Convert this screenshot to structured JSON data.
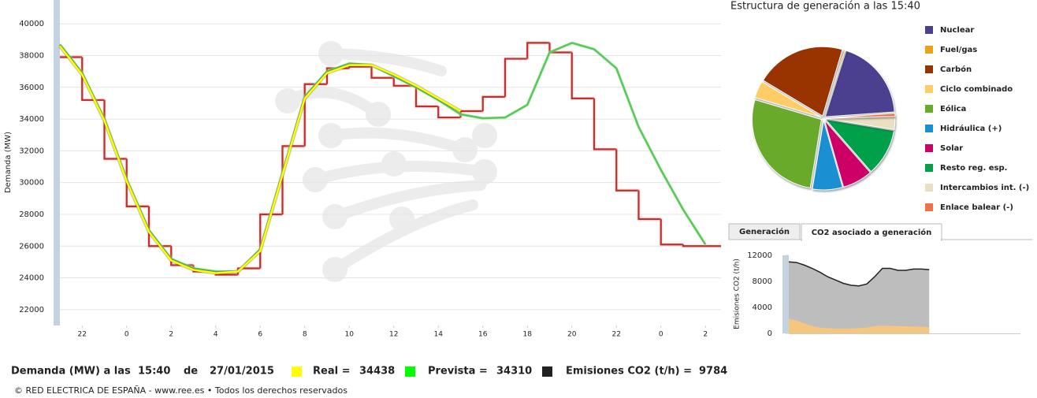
{
  "chart_data": [
    {
      "type": "line",
      "y_label": "Demanda (MW)",
      "xlim": [
        -1,
        28.7
      ],
      "xticks": [
        {
          "value": 0,
          "label": "22"
        },
        {
          "value": 2,
          "label": "0"
        },
        {
          "value": 4,
          "label": "2"
        },
        {
          "value": 6,
          "label": "4"
        },
        {
          "value": 8,
          "label": "6"
        },
        {
          "value": 10,
          "label": "8"
        },
        {
          "value": 12,
          "label": "10"
        },
        {
          "value": 14,
          "label": "12"
        },
        {
          "value": 16,
          "label": "14"
        },
        {
          "value": 18,
          "label": "16"
        },
        {
          "value": 20,
          "label": "18"
        },
        {
          "value": 22,
          "label": "20"
        },
        {
          "value": 24,
          "label": "22"
        },
        {
          "value": 26,
          "label": "0"
        },
        {
          "value": 28,
          "label": "2"
        }
      ],
      "ylim": [
        21000,
        41500
      ],
      "yticks": [
        22000,
        24000,
        26000,
        28000,
        30000,
        32000,
        34000,
        36000,
        38000,
        40000
      ],
      "grid": true,
      "series": [
        {
          "color": "#c0302c",
          "step": true,
          "x": [
            -1,
            0,
            1,
            2,
            3,
            4,
            5,
            6,
            7,
            8,
            9,
            10,
            11,
            12,
            13,
            14,
            15,
            16,
            17,
            18,
            19,
            20,
            21,
            22,
            23,
            24,
            25,
            26,
            27
          ],
          "values": [
            37900,
            35200,
            31500,
            28500,
            26000,
            24800,
            24400,
            24200,
            24600,
            28000,
            32300,
            36200,
            37200,
            37300,
            36600,
            36100,
            34800,
            34100,
            34500,
            35400,
            37800,
            38800,
            38200,
            35300,
            32100,
            29500,
            27700,
            26100,
            26000
          ]
        },
        {
          "color": "#5cc85c",
          "x": [
            -1,
            0,
            1,
            2,
            3,
            4,
            5,
            6,
            7,
            8,
            9,
            10,
            11,
            12,
            13,
            14,
            15,
            16,
            17,
            18,
            19,
            20,
            21,
            22,
            23,
            24,
            25,
            26,
            27,
            28
          ],
          "values": [
            38700,
            36900,
            34000,
            30200,
            27000,
            25200,
            24600,
            24400,
            24400,
            25800,
            30600,
            35400,
            37000,
            37500,
            37400,
            36700,
            36000,
            35200,
            34300,
            34050,
            34100,
            34900,
            38200,
            38800,
            38400,
            37200,
            33500,
            30800,
            28300,
            26100
          ]
        },
        {
          "color": "#ffff00",
          "x": [
            -1,
            0,
            1,
            2,
            3,
            4,
            5,
            6,
            7,
            8,
            9,
            10,
            11,
            12,
            13,
            14,
            15,
            16,
            17
          ],
          "values": [
            38600,
            36800,
            33900,
            30100,
            26900,
            25100,
            24500,
            24300,
            24400,
            25700,
            30500,
            35300,
            36900,
            37400,
            37400,
            36800,
            36100,
            35300,
            34500
          ]
        }
      ]
    },
    {
      "type": "pie",
      "title": "Estructura de generación a las 15:40",
      "categories": [
        "Nuclear",
        "Fuel/gas",
        "Carbón",
        "Ciclo combinado",
        "Eólica",
        "Hidráulica (+)",
        "Solar",
        "Resto reg. esp.",
        "Intercambios int. (-)",
        "Enlace balear (-)"
      ],
      "values": [
        19,
        0.3,
        21,
        4,
        27,
        7,
        7,
        11,
        3,
        0.7
      ],
      "colors": [
        "#4b3f8f",
        "#e8a317",
        "#993300",
        "#ffcc66",
        "#6aaa2a",
        "#1a8fd1",
        "#cc0066",
        "#00a04a",
        "#e8e0c0",
        "#f0704a"
      ]
    },
    {
      "type": "area",
      "y_label": "Emisiones CO2 (t/h)",
      "xlim": [
        -1,
        28.7
      ],
      "ylim": [
        0,
        12000
      ],
      "yticks": [
        0,
        4000,
        8000,
        12000
      ],
      "series": [
        {
          "color": "#bdbdbd",
          "line_color": "#222222",
          "x": [
            -1,
            0,
            1,
            2,
            3,
            4,
            5,
            6,
            7,
            8,
            9,
            10,
            11,
            12,
            13,
            14,
            15,
            16,
            17
          ],
          "values": [
            11000,
            10900,
            10500,
            10000,
            9400,
            8700,
            8200,
            7700,
            7400,
            7300,
            7600,
            8700,
            10000,
            10000,
            9700,
            9700,
            9900,
            9900,
            9800
          ]
        },
        {
          "color": "#f5c77e",
          "x": [
            -1,
            0,
            1,
            2,
            3,
            4,
            5,
            6,
            7,
            8,
            9,
            10,
            11,
            12,
            13,
            14,
            15,
            16,
            17
          ],
          "values": [
            2200,
            2000,
            1500,
            1100,
            900,
            800,
            750,
            750,
            750,
            800,
            900,
            1100,
            1200,
            1150,
            1100,
            1100,
            1050,
            1000,
            950
          ]
        }
      ]
    }
  ],
  "tabs": [
    "Generación",
    "CO2 asociado a generación"
  ],
  "footer": {
    "label": "Demanda (MW) a las",
    "time": "15:40",
    "de": "de",
    "date": "27/01/2015",
    "real_label": "Real =",
    "real": 34438,
    "prevista_label": "Prevista =",
    "prevista": 34310,
    "co2_label": "Emisiones CO2 (t/h) =",
    "co2": 9784
  },
  "copyright": "© RED ELECTRICA DE ESPAÑA - www.ree.es • Todos los derechos reservados"
}
